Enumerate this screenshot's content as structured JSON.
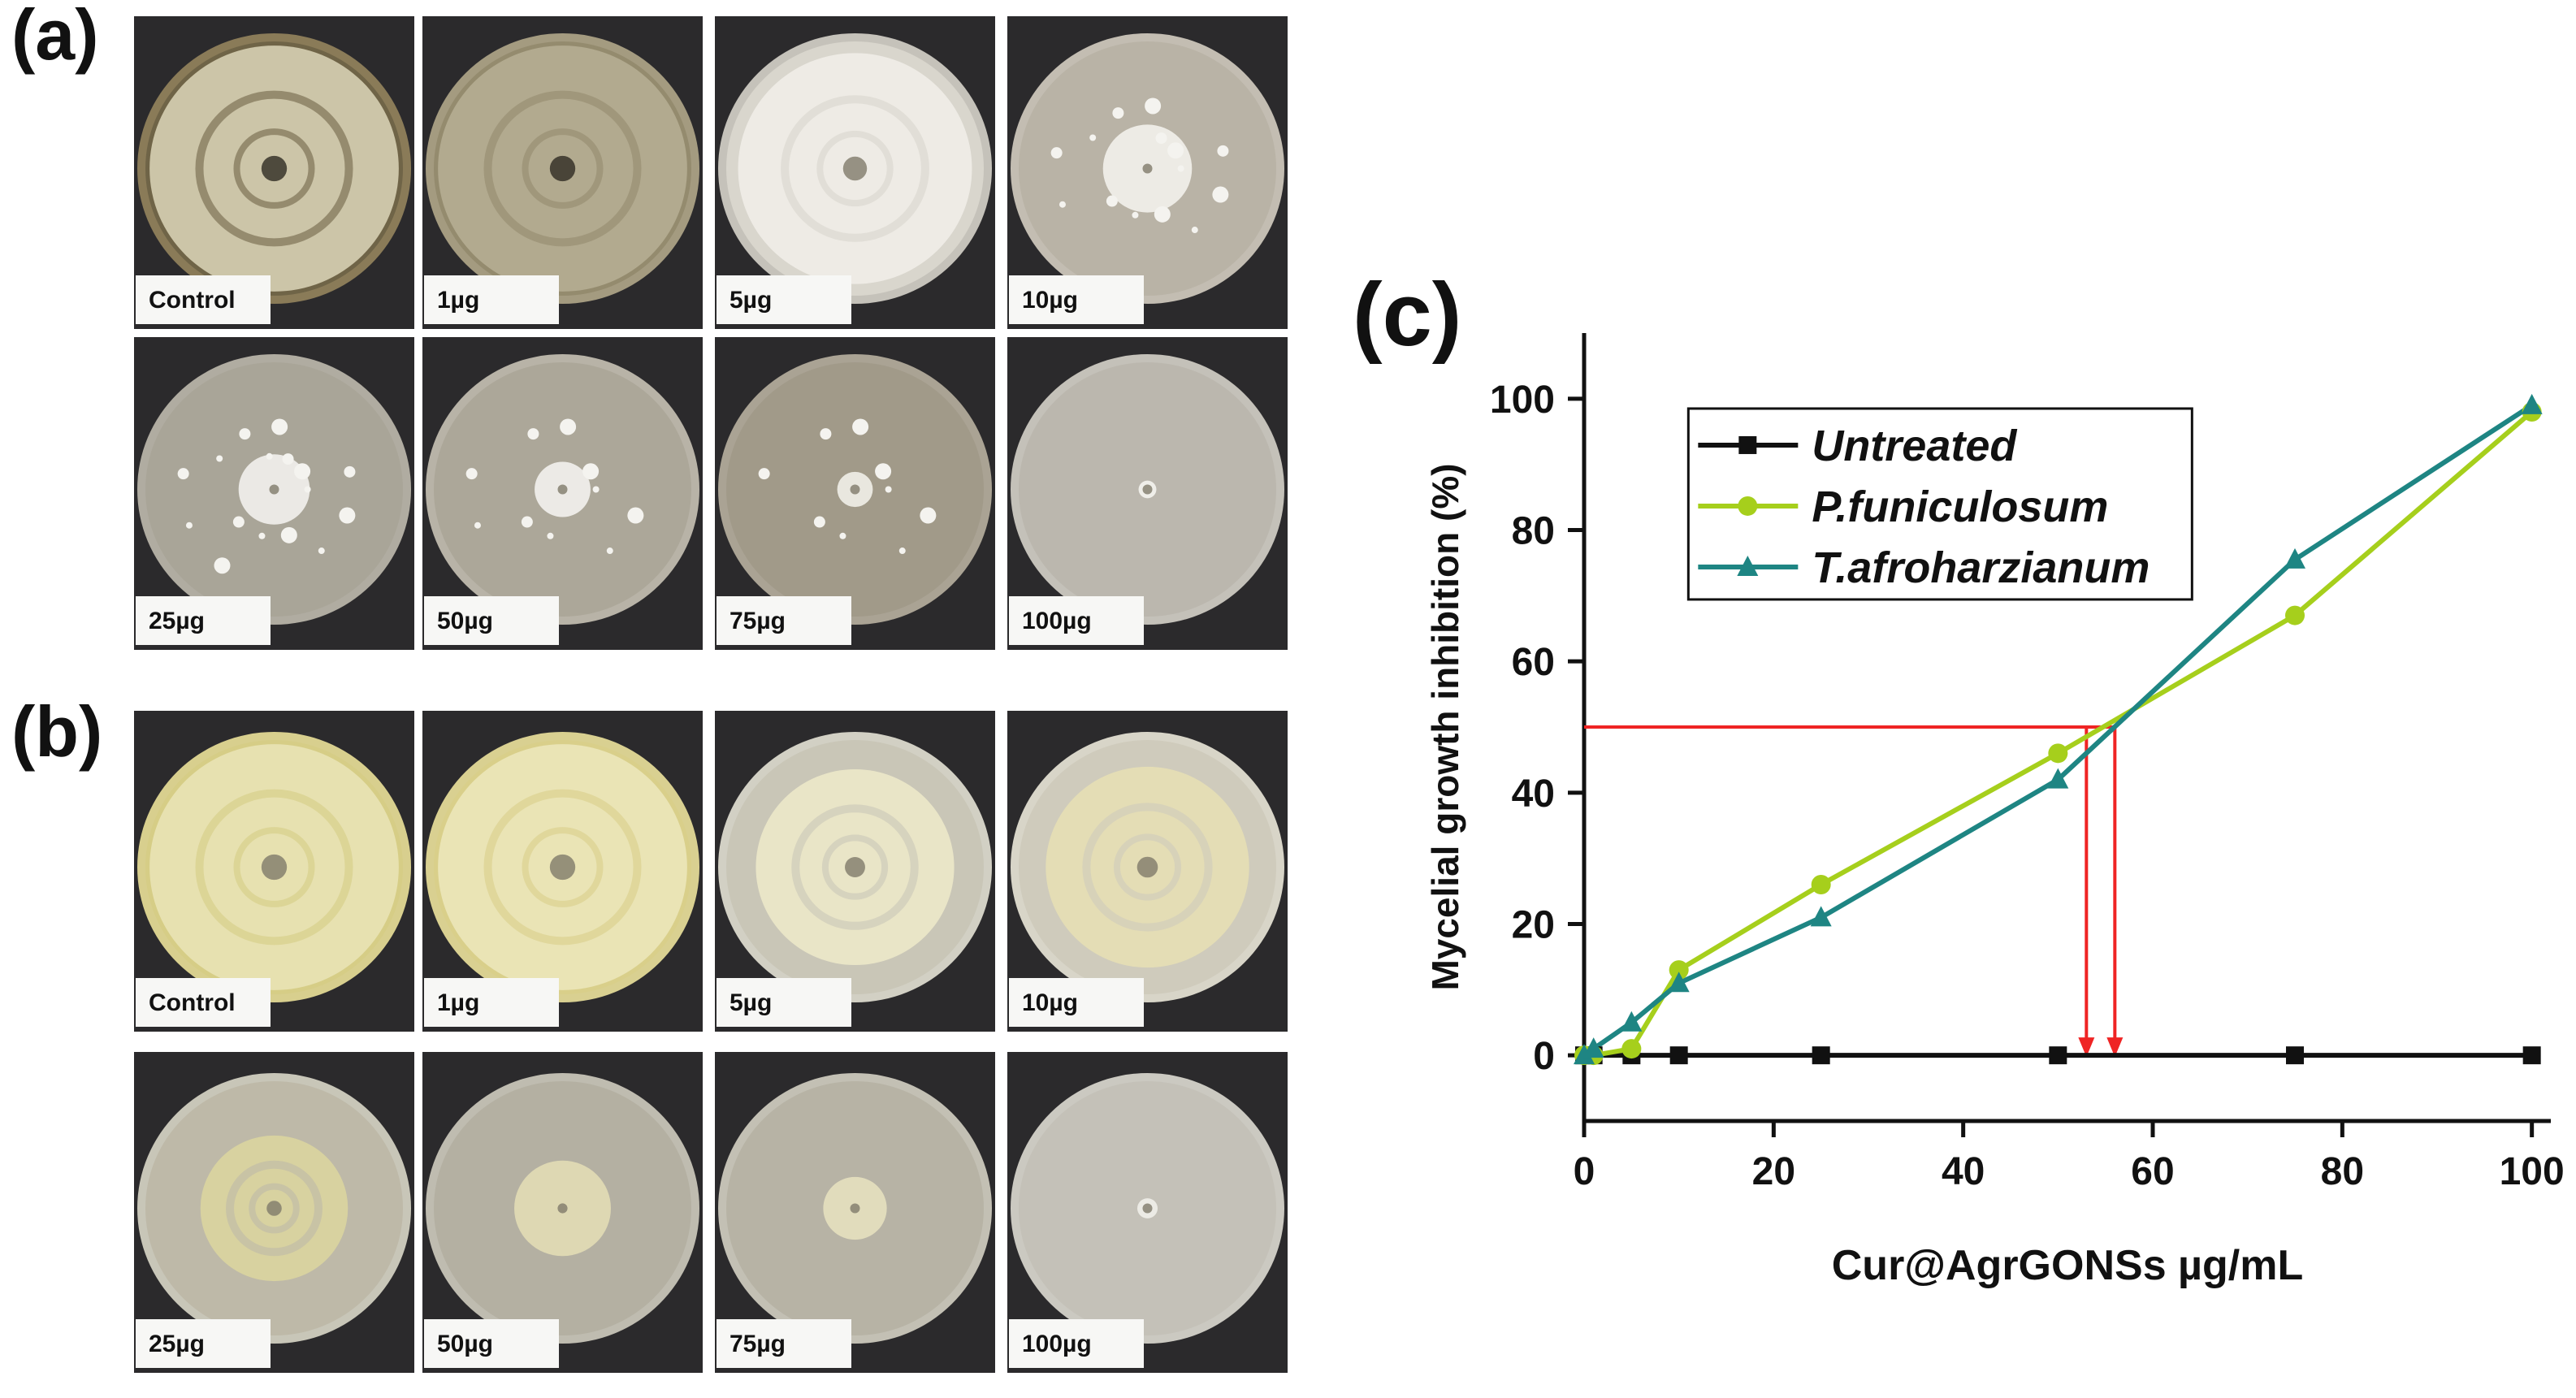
{
  "panels": {
    "a": {
      "letter": "(a)",
      "labels": [
        "Control",
        "1µg",
        "5µg",
        "10µg",
        "25µg",
        "50µg",
        "75µg",
        "100µg"
      ]
    },
    "b": {
      "letter": "(b)",
      "labels": [
        "Control",
        "1µg",
        "5µg",
        "10µg",
        "25µg",
        "50µg",
        "75µg",
        "100µg"
      ]
    }
  },
  "colors": {
    "untreated": "#111111",
    "funiculosum": "#a6cf1c",
    "afroharzianum": "#1e8583",
    "ic50_marker": "#ef2424",
    "plate_background": "#2b2a2c"
  },
  "chart_data": {
    "type": "line",
    "panel_letter": "(c)",
    "title": "",
    "xlabel": "Cur@AgrGONSs µg/mL",
    "ylabel": "Mycelial growth inhibition (%)",
    "xlim": [
      0,
      102
    ],
    "ylim": [
      -10,
      110
    ],
    "xticks": [
      0,
      20,
      40,
      60,
      80,
      100
    ],
    "yticks": [
      0,
      20,
      40,
      60,
      80,
      100
    ],
    "grid": false,
    "legend_position": "top-left",
    "series": [
      {
        "name": "Untreated",
        "marker": "square",
        "x": [
          0,
          1,
          5,
          10,
          25,
          50,
          75,
          100
        ],
        "y": [
          0,
          0,
          0,
          0,
          0,
          0,
          0,
          0
        ]
      },
      {
        "name": "P.funiculosum",
        "marker": "circle",
        "x": [
          0,
          1,
          5,
          10,
          25,
          50,
          75,
          100
        ],
        "y": [
          0,
          0,
          1,
          13,
          26,
          46,
          67,
          98
        ]
      },
      {
        "name": "T.afroharzianum",
        "marker": "triangle",
        "x": [
          0,
          1,
          5,
          10,
          25,
          50,
          75,
          100
        ],
        "y": [
          0,
          1,
          5,
          11,
          21,
          42,
          75.5,
          99
        ]
      }
    ],
    "annotations": [
      {
        "type": "hline",
        "y": 50,
        "x_from": 0,
        "x_to": 56
      },
      {
        "type": "arrow-down",
        "x": 53,
        "y_from": 50,
        "y_to": 0
      },
      {
        "type": "arrow-down",
        "x": 56,
        "y_from": 50,
        "y_to": 0
      }
    ]
  }
}
